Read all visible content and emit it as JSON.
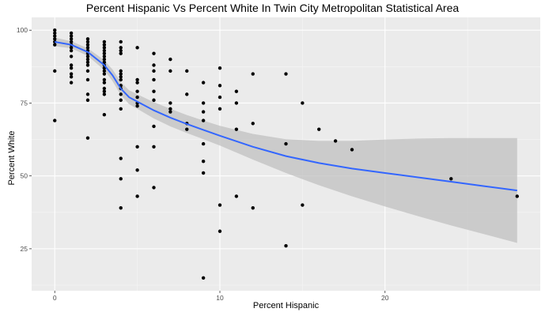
{
  "chart_data": {
    "type": "scatter",
    "title": "Percent Hispanic Vs Percent White In Twin City Metropolitan Statistical Area",
    "xlabel": "Percent Hispanic",
    "ylabel": "Percent White",
    "xlim": [
      -1.4,
      29.4
    ],
    "ylim": [
      10.6,
      104.4
    ],
    "x_ticks": [
      0,
      10,
      20
    ],
    "y_ticks": [
      25,
      50,
      75,
      100
    ],
    "grid": true,
    "legend": "none",
    "colors": {
      "panel": "#ebebeb",
      "grid_major": "#ffffff",
      "grid_minor": "#f5f5f5",
      "points": "#000000",
      "smooth": "#3366ff",
      "ribbon": "#bdbdbd"
    },
    "points": [
      [
        0,
        100
      ],
      [
        0,
        99
      ],
      [
        0,
        98
      ],
      [
        0,
        97
      ],
      [
        0,
        96
      ],
      [
        0,
        95
      ],
      [
        0,
        86
      ],
      [
        0,
        69
      ],
      [
        1,
        99
      ],
      [
        1,
        98
      ],
      [
        1,
        97
      ],
      [
        1,
        96
      ],
      [
        1,
        95
      ],
      [
        1,
        94
      ],
      [
        1,
        93
      ],
      [
        1,
        91
      ],
      [
        1,
        88
      ],
      [
        1,
        87
      ],
      [
        1,
        85
      ],
      [
        1,
        84
      ],
      [
        1,
        82
      ],
      [
        2,
        97
      ],
      [
        2,
        96
      ],
      [
        2,
        95
      ],
      [
        2,
        94
      ],
      [
        2,
        93
      ],
      [
        2,
        92
      ],
      [
        2,
        91
      ],
      [
        2,
        90
      ],
      [
        2,
        89
      ],
      [
        2,
        88
      ],
      [
        2,
        86
      ],
      [
        2,
        83
      ],
      [
        2,
        78
      ],
      [
        2,
        76
      ],
      [
        2,
        63
      ],
      [
        3,
        96
      ],
      [
        3,
        95
      ],
      [
        3,
        94
      ],
      [
        3,
        93
      ],
      [
        3,
        92
      ],
      [
        3,
        91
      ],
      [
        3,
        90
      ],
      [
        3,
        89
      ],
      [
        3,
        88
      ],
      [
        3,
        87
      ],
      [
        3,
        86
      ],
      [
        3,
        85
      ],
      [
        3,
        83
      ],
      [
        3,
        82
      ],
      [
        3,
        80
      ],
      [
        3,
        79
      ],
      [
        3,
        78
      ],
      [
        3,
        71
      ],
      [
        4,
        96
      ],
      [
        4,
        94
      ],
      [
        4,
        93
      ],
      [
        4,
        92
      ],
      [
        4,
        86
      ],
      [
        4,
        85
      ],
      [
        4,
        84
      ],
      [
        4,
        83
      ],
      [
        4,
        81
      ],
      [
        4,
        80
      ],
      [
        4,
        78
      ],
      [
        4,
        76
      ],
      [
        4,
        73
      ],
      [
        4,
        56
      ],
      [
        4,
        49
      ],
      [
        4,
        39
      ],
      [
        5,
        94
      ],
      [
        5,
        83
      ],
      [
        5,
        82
      ],
      [
        5,
        79
      ],
      [
        5,
        77
      ],
      [
        5,
        75
      ],
      [
        5,
        74
      ],
      [
        5,
        60
      ],
      [
        5,
        52
      ],
      [
        5,
        43
      ],
      [
        6,
        92
      ],
      [
        6,
        88
      ],
      [
        6,
        86
      ],
      [
        6,
        83
      ],
      [
        6,
        79
      ],
      [
        6,
        76
      ],
      [
        6,
        67
      ],
      [
        6,
        60
      ],
      [
        6,
        46
      ],
      [
        7,
        90
      ],
      [
        7,
        86
      ],
      [
        7,
        75
      ],
      [
        7,
        73
      ],
      [
        7,
        72
      ],
      [
        8,
        86
      ],
      [
        8,
        78
      ],
      [
        8,
        68
      ],
      [
        8,
        66
      ],
      [
        9,
        82
      ],
      [
        9,
        75
      ],
      [
        9,
        72
      ],
      [
        9,
        69
      ],
      [
        9,
        61
      ],
      [
        9,
        55
      ],
      [
        9,
        51
      ],
      [
        9,
        15
      ],
      [
        10,
        87
      ],
      [
        10,
        81
      ],
      [
        10,
        77
      ],
      [
        10,
        73
      ],
      [
        10,
        40
      ],
      [
        10,
        31
      ],
      [
        11,
        79
      ],
      [
        11,
        75
      ],
      [
        11,
        66
      ],
      [
        11,
        43
      ],
      [
        12,
        85
      ],
      [
        12,
        68
      ],
      [
        12,
        39
      ],
      [
        14,
        85
      ],
      [
        14,
        61
      ],
      [
        14,
        26
      ],
      [
        15,
        75
      ],
      [
        15,
        40
      ],
      [
        16,
        66
      ],
      [
        17,
        62
      ],
      [
        18,
        59
      ],
      [
        24,
        49
      ],
      [
        28,
        43
      ]
    ],
    "smooth": {
      "x": [
        0,
        1,
        2,
        3,
        3.5,
        4,
        4.5,
        5,
        6,
        7,
        8,
        9,
        10,
        12,
        14,
        16,
        18,
        20,
        22,
        24,
        26,
        28
      ],
      "y": [
        96,
        95,
        92.5,
        88,
        84.5,
        80,
        77,
        75.5,
        72.5,
        70,
        67.8,
        65.8,
        63.8,
        60,
        56.8,
        54.4,
        52.5,
        51,
        49.5,
        48,
        46.5,
        45
      ],
      "lower": [
        94.5,
        93.8,
        91.2,
        86.3,
        82.5,
        77.8,
        74.6,
        73,
        69.7,
        67,
        64.7,
        62.6,
        60.4,
        55.6,
        51,
        46.8,
        43,
        39.5,
        36.2,
        33,
        30,
        27
      ],
      "upper": [
        97.5,
        96.2,
        93.8,
        89.7,
        86.5,
        82.2,
        79.4,
        78,
        75.3,
        73,
        70.9,
        69,
        67.2,
        64.4,
        62.6,
        62,
        62,
        62.5,
        62.8,
        63,
        63,
        63
      ]
    }
  }
}
